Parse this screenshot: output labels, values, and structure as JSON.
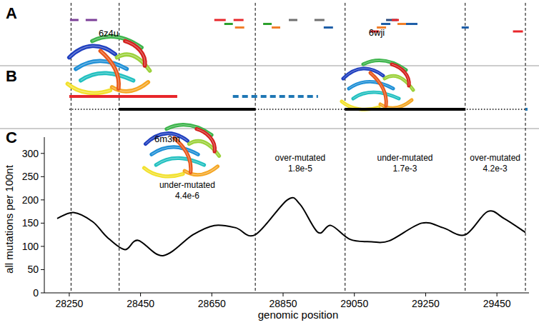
{
  "chart_data": {
    "type": "line",
    "panels": [
      "A",
      "B",
      "C"
    ],
    "x_label": "genomic position",
    "y_label": "all mutations per 100nt",
    "color": "#000000",
    "x": [
      28216,
      28262,
      28316,
      28356,
      28406,
      28443,
      28513,
      28597,
      28657,
      28717,
      28772,
      28862,
      28898,
      28948,
      28984,
      29038,
      29098,
      29148,
      29239,
      29299,
      29361,
      29424,
      29470,
      29530
    ],
    "values": [
      160,
      173,
      153,
      120,
      93,
      113,
      80,
      125,
      145,
      140,
      125,
      200,
      190,
      130,
      145,
      115,
      110,
      112,
      150,
      140,
      125,
      175,
      160,
      130
    ],
    "xlim": [
      28180,
      29540
    ],
    "ylim": [
      0,
      335
    ],
    "xticks": [
      28250,
      28450,
      28650,
      28850,
      29050,
      29250,
      29450
    ],
    "yticks": [
      0,
      50,
      100,
      150,
      200,
      250,
      300
    ],
    "grid": false,
    "boundaries": [
      28255,
      28390,
      28772,
      29024,
      29361,
      29530
    ],
    "annotations": [
      {
        "x": 28581,
        "y": 226,
        "text": "under-mutated",
        "p_value": "4.4e-6"
      },
      {
        "x": 28898,
        "y": 285,
        "text": "over-mutated",
        "p_value": "1.8e-5"
      },
      {
        "x": 29192,
        "y": 285,
        "text": "under-mutated",
        "p_value": "1.7e-3"
      },
      {
        "x": 29445,
        "y": 285,
        "text": "over-mutated",
        "p_value": "4.2e-3"
      }
    ],
    "structures": [
      "6z4u",
      "6wji",
      "6m3m"
    ],
    "tracks_a": [
      {
        "start": 28252,
        "end": 28276,
        "row": 0,
        "color": "#7b3f98"
      },
      {
        "start": 28296,
        "end": 28328,
        "row": 0,
        "color": "#7b3f98"
      },
      {
        "start": 28657,
        "end": 28689,
        "row": 0,
        "color": "#e8262b"
      },
      {
        "start": 28711,
        "end": 28739,
        "row": 0,
        "color": "#e8262b"
      },
      {
        "start": 28685,
        "end": 28709,
        "row": 1,
        "color": "#2ca02c"
      },
      {
        "start": 28715,
        "end": 28741,
        "row": 2,
        "color": "#f07f2a"
      },
      {
        "start": 28794,
        "end": 28818,
        "row": 1,
        "color": "#2ca02c"
      },
      {
        "start": 28818,
        "end": 28842,
        "row": 2,
        "color": "#f07f2a"
      },
      {
        "start": 28866,
        "end": 28890,
        "row": 0,
        "color": "#6f6f6f"
      },
      {
        "start": 28938,
        "end": 28966,
        "row": 0,
        "color": "#6f6f6f"
      },
      {
        "start": 28964,
        "end": 28990,
        "row": 2,
        "color": "#1f5fa8"
      },
      {
        "start": 29095,
        "end": 29119,
        "row": 3,
        "color": "#e8262b"
      },
      {
        "start": 29113,
        "end": 29139,
        "row": 2,
        "color": "#f07f2a"
      },
      {
        "start": 29125,
        "end": 29151,
        "row": 1,
        "color": "#1f5fa8"
      },
      {
        "start": 29139,
        "end": 29171,
        "row": 0,
        "color": "#2b4a7c"
      },
      {
        "start": 29155,
        "end": 29175,
        "row": 0,
        "color": "#e8262b"
      },
      {
        "start": 29171,
        "end": 29199,
        "row": 1,
        "color": "#f07f2a"
      },
      {
        "start": 29195,
        "end": 29227,
        "row": 1,
        "color": "#1f5fa8"
      },
      {
        "start": 29351,
        "end": 29371,
        "row": 2,
        "color": "#1f5fa8"
      },
      {
        "start": 29495,
        "end": 29523,
        "row": 3,
        "color": "#e8262b"
      }
    ],
    "tracks_b": [
      {
        "start": 28250,
        "end": 29530,
        "row": 1,
        "color": "#000000",
        "line_style": "dotted"
      },
      {
        "start": 28250,
        "end": 28553,
        "row": 0,
        "color": "#e8262b",
        "line_style": "solid"
      },
      {
        "start": 28709,
        "end": 28948,
        "row": 0,
        "color": "#1f77b4",
        "line_style": "dashed"
      },
      {
        "start": 28390,
        "end": 28772,
        "row": 1,
        "color": "#000000",
        "line_style": "solid"
      },
      {
        "start": 29024,
        "end": 29361,
        "row": 1,
        "color": "#000000",
        "line_style": "solid"
      },
      {
        "start": 29530,
        "end": 29536,
        "row": 1,
        "color": "#1f77b4",
        "line_style": "solid"
      }
    ]
  }
}
